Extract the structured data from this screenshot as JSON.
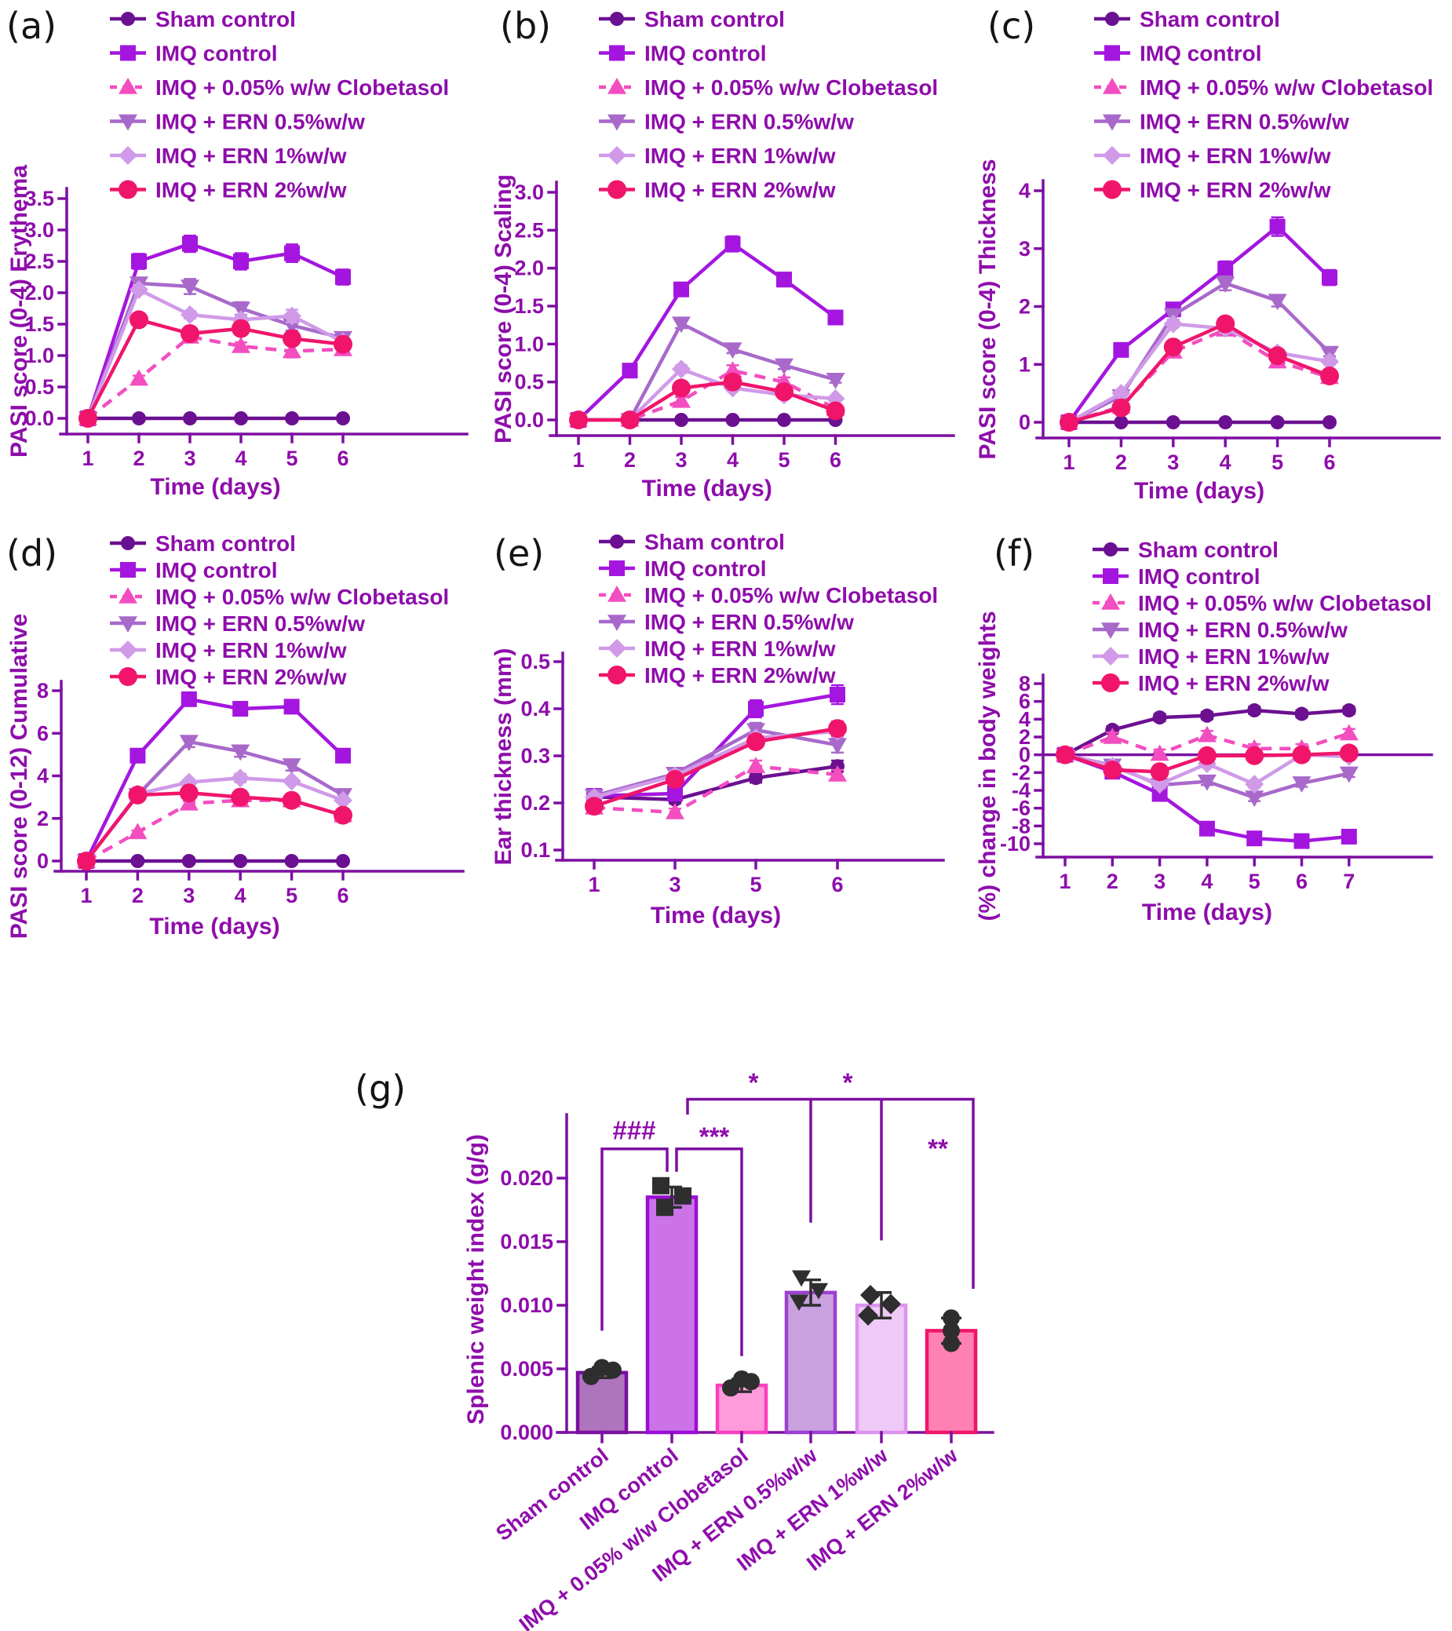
{
  "styles": {
    "text_purple": "#8E0DAB",
    "axis_purple": "#7D0FA2",
    "background": "#ffffff",
    "scatter_black": "#2e2e2e"
  },
  "legend": [
    {
      "name": "Sham control",
      "color": "#6B1091",
      "marker": "circle",
      "dashed": false
    },
    {
      "name": "IMQ control",
      "color": "#A416DF",
      "marker": "square",
      "dashed": false
    },
    {
      "name": "IMQ + 0.05% w/w Clobetasol",
      "color": "#F24EC0",
      "marker": "triangle-up",
      "dashed": true
    },
    {
      "name": "IMQ + ERN 0.5%w/w",
      "color": "#A869CB",
      "marker": "triangle-down",
      "dashed": false
    },
    {
      "name": "IMQ + ERN 1%w/w",
      "color": "#D09AE8",
      "marker": "diamond",
      "dashed": false
    },
    {
      "name": "IMQ + ERN 2%w/w",
      "color": "#F0156B",
      "marker": "circle",
      "dashed": false
    }
  ],
  "chart_data": [
    {
      "panel": "a",
      "panel_letter": "(a)",
      "type": "line",
      "ylabel": "PASI score (0-4) Erythema",
      "xlabel": "Time (days)",
      "x": [
        1,
        2,
        3,
        4,
        5,
        6
      ],
      "ytick_vals": [
        0,
        0.5,
        1,
        1.5,
        2,
        2.5,
        3,
        3.5
      ],
      "ytick_labels": [
        "0.0",
        "0.5",
        "1.0",
        "1.5",
        "2.0",
        "2.5",
        "3.0",
        "3.5"
      ],
      "series": [
        {
          "name": "Sham control",
          "values": [
            0,
            0,
            0,
            0,
            0,
            0
          ],
          "errors": [
            0,
            0,
            0,
            0,
            0,
            0
          ]
        },
        {
          "name": "IMQ control",
          "values": [
            0,
            2.5,
            2.78,
            2.5,
            2.63,
            2.25
          ],
          "errors": [
            0,
            0.12,
            0.13,
            0.13,
            0.14,
            0.12
          ]
        },
        {
          "name": "IMQ + 0.05% w/w Clobetasol",
          "values": [
            0,
            0.63,
            1.3,
            1.15,
            1.07,
            1.1
          ],
          "errors": [
            0,
            0.05,
            0.08,
            0.06,
            0.1,
            0.09
          ]
        },
        {
          "name": "IMQ + ERN 0.5%w/w",
          "values": [
            0,
            2.15,
            2.1,
            1.75,
            1.48,
            1.28
          ],
          "errors": [
            0,
            0.07,
            0.12,
            0.1,
            0.08,
            0.06
          ]
        },
        {
          "name": "IMQ + ERN 1%w/w",
          "values": [
            0,
            2.05,
            1.65,
            1.57,
            1.63,
            1.22
          ],
          "errors": [
            0,
            0.06,
            0.06,
            0.07,
            0.1,
            0.06
          ]
        },
        {
          "name": "IMQ + ERN 2%w/w",
          "values": [
            0,
            1.57,
            1.35,
            1.43,
            1.27,
            1.18
          ],
          "errors": [
            0,
            0.07,
            0.06,
            0.06,
            0.06,
            0.07
          ]
        }
      ]
    },
    {
      "panel": "b",
      "panel_letter": "(b)",
      "type": "line",
      "ylabel": "PASI score (0-4) Scaling",
      "xlabel": "Time (days)",
      "x": [
        1,
        2,
        3,
        4,
        5,
        6
      ],
      "ytick_vals": [
        0,
        0.5,
        1,
        1.5,
        2,
        2.5,
        3
      ],
      "ytick_labels": [
        "0.0",
        "0.5",
        "1.0",
        "1.5",
        "2.0",
        "2.5",
        "3.0"
      ],
      "series": [
        {
          "name": "Sham control",
          "values": [
            0,
            0,
            0,
            0,
            0,
            0
          ],
          "errors": [
            0,
            0,
            0,
            0,
            0,
            0
          ]
        },
        {
          "name": "IMQ control",
          "values": [
            0,
            0.65,
            1.72,
            2.32,
            1.85,
            1.35
          ],
          "errors": [
            0,
            0.04,
            0.08,
            0.1,
            0.09,
            0.05
          ]
        },
        {
          "name": "IMQ + 0.05% w/w Clobetasol",
          "values": [
            0,
            0,
            0.25,
            0.65,
            0.5,
            0.15
          ],
          "errors": [
            0,
            0,
            0.05,
            0.07,
            0.06,
            0.04
          ]
        },
        {
          "name": "IMQ + ERN 0.5%w/w",
          "values": [
            0,
            0,
            1.27,
            0.93,
            0.72,
            0.53
          ],
          "errors": [
            0,
            0,
            0.06,
            0.05,
            0.05,
            0.04
          ]
        },
        {
          "name": "IMQ + ERN 1%w/w",
          "values": [
            0,
            0,
            0.67,
            0.42,
            0.33,
            0.28
          ],
          "errors": [
            0,
            0,
            0.05,
            0.04,
            0.04,
            0.03
          ]
        },
        {
          "name": "IMQ + ERN 2%w/w",
          "values": [
            0,
            0,
            0.42,
            0.5,
            0.37,
            0.12
          ],
          "errors": [
            0,
            0,
            0.05,
            0.05,
            0.04,
            0.03
          ]
        }
      ]
    },
    {
      "panel": "c",
      "panel_letter": "(c)",
      "type": "line",
      "ylabel": "PASI score (0-4) Thickness",
      "xlabel": "Time (days)",
      "x": [
        1,
        2,
        3,
        4,
        5,
        6
      ],
      "ytick_vals": [
        0,
        1,
        2,
        3,
        4
      ],
      "ytick_labels": [
        "0",
        "1",
        "2",
        "3",
        "4"
      ],
      "series": [
        {
          "name": "Sham control",
          "values": [
            0,
            0,
            0,
            0,
            0,
            0
          ],
          "errors": [
            0,
            0,
            0,
            0,
            0,
            0
          ]
        },
        {
          "name": "IMQ control",
          "values": [
            0,
            1.25,
            1.95,
            2.65,
            3.38,
            2.5
          ],
          "errors": [
            0,
            0.07,
            0.09,
            0.13,
            0.16,
            0.13
          ]
        },
        {
          "name": "IMQ + 0.05% w/w Clobetasol",
          "values": [
            0,
            0.27,
            1.22,
            1.6,
            1.05,
            0.78
          ],
          "errors": [
            0,
            0.04,
            0.06,
            0.07,
            0.06,
            0.05
          ]
        },
        {
          "name": "IMQ + ERN 0.5%w/w",
          "values": [
            0,
            0.45,
            1.85,
            2.4,
            2.1,
            1.2
          ],
          "errors": [
            0,
            0.05,
            0.08,
            0.12,
            0.1,
            0.06
          ]
        },
        {
          "name": "IMQ + ERN 1%w/w",
          "values": [
            0,
            0.5,
            1.7,
            1.62,
            1.2,
            1.05
          ],
          "errors": [
            0,
            0.05,
            0.06,
            0.07,
            0.06,
            0.05
          ]
        },
        {
          "name": "IMQ + ERN 2%w/w",
          "values": [
            0,
            0.25,
            1.3,
            1.7,
            1.15,
            0.8
          ],
          "errors": [
            0,
            0.04,
            0.06,
            0.07,
            0.06,
            0.05
          ]
        }
      ]
    },
    {
      "panel": "d",
      "panel_letter": "(d)",
      "type": "line",
      "ylabel": "PASI score (0-12) Cumulative",
      "xlabel": "Time (days)",
      "x": [
        1,
        2,
        3,
        4,
        5,
        6
      ],
      "ytick_vals": [
        0,
        2,
        4,
        6,
        8
      ],
      "ytick_labels": [
        "0",
        "2",
        "4",
        "6",
        "8"
      ],
      "series": [
        {
          "name": "Sham control",
          "values": [
            0,
            0,
            0,
            0,
            0,
            0
          ],
          "errors": [
            0,
            0,
            0,
            0,
            0,
            0
          ]
        },
        {
          "name": "IMQ control",
          "values": [
            0,
            4.95,
            7.6,
            7.15,
            7.25,
            4.95
          ],
          "errors": [
            0,
            0.15,
            0.3,
            0.32,
            0.3,
            0.2
          ]
        },
        {
          "name": "IMQ + 0.05% w/w Clobetasol",
          "values": [
            0,
            1.35,
            2.7,
            2.85,
            2.85,
            2.15
          ],
          "errors": [
            0,
            0.08,
            0.12,
            0.1,
            0.1,
            0.08
          ]
        },
        {
          "name": "IMQ + ERN 0.5%w/w",
          "values": [
            0,
            3.1,
            5.6,
            5.15,
            4.5,
            3.1
          ],
          "errors": [
            0,
            0.1,
            0.25,
            0.25,
            0.25,
            0.12
          ]
        },
        {
          "name": "IMQ + ERN 1%w/w",
          "values": [
            0,
            3.15,
            3.7,
            3.9,
            3.75,
            2.85
          ],
          "errors": [
            0,
            0.1,
            0.12,
            0.2,
            0.12,
            0.1
          ]
        },
        {
          "name": "IMQ + ERN 2%w/w",
          "values": [
            0,
            3.1,
            3.2,
            3.0,
            2.85,
            2.15
          ],
          "errors": [
            0,
            0.1,
            0.12,
            0.1,
            0.1,
            0.08
          ]
        }
      ]
    },
    {
      "panel": "e",
      "panel_letter": "(e)",
      "type": "line",
      "ylabel": "Ear thickness (mm)",
      "xlabel": "Time (days)",
      "x": [
        1,
        3,
        5,
        6
      ],
      "ytick_vals": [
        0.1,
        0.2,
        0.3,
        0.4,
        0.5
      ],
      "ytick_labels": [
        "0.1",
        "0.2",
        "0.3",
        "0.4",
        "0.5"
      ],
      "series": [
        {
          "name": "Sham control",
          "values": [
            0.213,
            0.207,
            0.253,
            0.278
          ],
          "errors": [
            0.008,
            0.008,
            0.01,
            0.012
          ]
        },
        {
          "name": "IMQ control",
          "values": [
            0.215,
            0.22,
            0.4,
            0.43
          ],
          "errors": [
            0.008,
            0.012,
            0.018,
            0.02
          ]
        },
        {
          "name": "IMQ + 0.05% w/w Clobetasol",
          "values": [
            0.19,
            0.18,
            0.278,
            0.26
          ],
          "errors": [
            0.006,
            0.008,
            0.012,
            0.01
          ]
        },
        {
          "name": "IMQ + ERN 0.5%w/w",
          "values": [
            0.215,
            0.262,
            0.355,
            0.323
          ],
          "errors": [
            0.008,
            0.012,
            0.015,
            0.016
          ]
        },
        {
          "name": "IMQ + ERN 1%w/w",
          "values": [
            0.212,
            0.258,
            0.338,
            0.352
          ],
          "errors": [
            0.007,
            0.01,
            0.01,
            0.012
          ]
        },
        {
          "name": "IMQ + ERN 2%w/w",
          "values": [
            0.193,
            0.25,
            0.33,
            0.358
          ],
          "errors": [
            0.006,
            0.01,
            0.012,
            0.015
          ]
        }
      ]
    },
    {
      "panel": "f",
      "panel_letter": "(f)",
      "type": "line",
      "ylabel": "(%) change in body weights",
      "xlabel": "Time (days)",
      "x": [
        1,
        2,
        3,
        4,
        5,
        6,
        7
      ],
      "ytick_vals": [
        -10,
        -8,
        -6,
        -4,
        -2,
        0,
        2,
        4,
        6,
        8
      ],
      "ytick_labels": [
        "-10",
        "-8",
        "-6",
        "-4",
        "-2",
        "0",
        "2",
        "4",
        "6",
        "8"
      ],
      "zero_line": true,
      "series": [
        {
          "name": "Sham control",
          "values": [
            0,
            2.8,
            4.2,
            4.4,
            5.0,
            4.6,
            5.0
          ],
          "errors": [
            0.4,
            0.4,
            0.4,
            0.4,
            0.4,
            0.4,
            0.4
          ]
        },
        {
          "name": "IMQ control",
          "values": [
            0,
            -1.9,
            -4.4,
            -8.3,
            -9.4,
            -9.7,
            -9.2
          ],
          "errors": [
            0.4,
            0.4,
            0.4,
            0.4,
            0.4,
            0.4,
            0.4
          ]
        },
        {
          "name": "IMQ + 0.05% w/w Clobetasol",
          "values": [
            0,
            2.0,
            0.1,
            2.2,
            0.7,
            0.7,
            2.4
          ],
          "errors": [
            0.5,
            0.5,
            0.5,
            0.5,
            0.5,
            0.5,
            0.5
          ]
        },
        {
          "name": "IMQ + ERN 0.5%w/w",
          "values": [
            0,
            -1.2,
            -3.4,
            -3.0,
            -4.8,
            -3.2,
            -2.1
          ],
          "errors": [
            0.4,
            0.4,
            0.4,
            0.4,
            0.4,
            0.4,
            0.4
          ]
        },
        {
          "name": "IMQ + ERN 1%w/w",
          "values": [
            0,
            -1.3,
            -3.3,
            -1.0,
            -3.3,
            0.0,
            -0.2
          ],
          "errors": [
            0.4,
            0.4,
            0.4,
            0.4,
            0.4,
            0.4,
            0.4
          ]
        },
        {
          "name": "IMQ + ERN 2%w/w",
          "values": [
            0,
            -1.7,
            -1.9,
            -0.1,
            -0.1,
            0.0,
            0.2
          ],
          "errors": [
            0.4,
            0.4,
            0.4,
            0.4,
            0.4,
            0.4,
            0.4
          ]
        }
      ]
    },
    {
      "panel": "g",
      "panel_letter": "(g)",
      "type": "bar",
      "ylabel": "Splenic weight index (g/g)",
      "categories": [
        "Sham control",
        "IMQ control",
        "IMQ + 0.05% w/w Clobetasol",
        "IMQ + ERN 0.5%w/w",
        "IMQ + ERN 1%w/w",
        "IMQ + ERN 2%w/w"
      ],
      "values": [
        0.0047,
        0.0185,
        0.0037,
        0.011,
        0.01,
        0.008
      ],
      "errors": [
        0.0004,
        0.0008,
        0.0005,
        0.001,
        0.001,
        0.001
      ],
      "points": [
        [
          0.0044,
          0.0051,
          0.0049
        ],
        [
          0.0194,
          0.0177,
          0.0186
        ],
        [
          0.0035,
          0.0042,
          0.004
        ],
        [
          0.0122,
          0.0103,
          0.0112
        ],
        [
          0.0108,
          0.0092,
          0.0101
        ],
        [
          0.009,
          0.008,
          0.007
        ]
      ],
      "point_markers": [
        "circle",
        "square",
        "circle",
        "triangle-down",
        "diamond",
        "circle"
      ],
      "bar_fills": [
        "#AF74BE",
        "#CC73EA",
        "#FF9BDB",
        "#C9A1DF",
        "#EFC9F7",
        "#FF80B3"
      ],
      "bar_borders": [
        "#7A0FA0",
        "#9B0ED6",
        "#FB3EC0",
        "#9C40D0",
        "#DC93EE",
        "#F0156B"
      ],
      "ytick_vals": [
        0,
        0.005,
        0.01,
        0.015,
        0.02
      ],
      "ytick_labels": [
        "0.000",
        "0.005",
        "0.010",
        "0.015",
        "0.020"
      ],
      "ylim": [
        0,
        0.022
      ],
      "significance": [
        {
          "label": "###",
          "between": [
            "Sham control",
            "IMQ control"
          ]
        },
        {
          "label": "***",
          "between": [
            "IMQ control",
            "IMQ + 0.05% w/w Clobetasol"
          ]
        },
        {
          "label": "*",
          "between": [
            "IMQ control",
            "IMQ + ERN 0.5%w/w"
          ]
        },
        {
          "label": "*",
          "between": [
            "IMQ control",
            "IMQ + ERN 1%w/w"
          ]
        },
        {
          "label": "**",
          "between": [
            "IMQ control",
            "IMQ + ERN 2%w/w"
          ]
        }
      ]
    }
  ]
}
